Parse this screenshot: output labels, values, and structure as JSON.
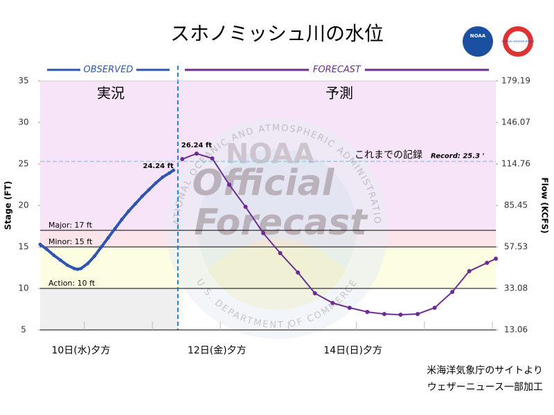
{
  "chart_data": {
    "type": "line",
    "title": "スホノミッシュ川の水位",
    "phase_labels": [
      "OBSERVED",
      "FORECAST"
    ],
    "region_labels": [
      "実況",
      "予測"
    ],
    "record": {
      "value": 25.3,
      "label": "Record: 25.3 '",
      "caption": "これまでの記録"
    },
    "thresholds": [
      {
        "name": "Major: 17 ft",
        "value": 17,
        "color": "#f8e4f8"
      },
      {
        "name": "Minor: 15 ft",
        "value": 15,
        "color": "#fbe4ea"
      },
      {
        "name": "Action: 10 ft",
        "value": 10,
        "color": "#fdfde2"
      }
    ],
    "y_label": "Stage (FT)",
    "y2_label": "Flow (KCFS)",
    "xlim": [
      10.1,
      16.8
    ],
    "xticks": [
      {
        "value": 10.75,
        "label": "10日(水)夕方"
      },
      {
        "value": 11.75,
        "label": null
      },
      {
        "value": 12.75,
        "label": "12日(金)夕方"
      },
      {
        "value": 13.75,
        "label": null
      },
      {
        "value": 14.75,
        "label": "14日(日)夕方"
      },
      {
        "value": 15.75,
        "label": null
      },
      {
        "value": 16.75,
        "label": null
      }
    ],
    "ylim": [
      5,
      35
    ],
    "yticks": [
      5,
      10,
      15,
      20,
      25,
      30,
      35
    ],
    "y2lim": [
      13.06,
      179.19
    ],
    "y2ticks": [
      13.06,
      33.08,
      57.53,
      85.45,
      114.76,
      146.07,
      179.19
    ],
    "series": [
      {
        "name": "OBSERVED",
        "color": "#2c55b0",
        "x": [
          10.1,
          10.2,
          10.3,
          10.4,
          10.5,
          10.6,
          10.65,
          10.7,
          10.8,
          10.9,
          11.0,
          11.1,
          11.2,
          11.3,
          11.4,
          11.5,
          11.6,
          11.7,
          11.8,
          11.9,
          12.0,
          12.06
        ],
        "values": [
          15.3,
          14.7,
          14.0,
          13.4,
          12.8,
          12.4,
          12.3,
          12.4,
          13.0,
          13.9,
          15.0,
          16.1,
          17.2,
          18.3,
          19.3,
          20.2,
          21.1,
          21.9,
          22.7,
          23.4,
          23.9,
          24.24
        ],
        "value_labels": [
          null,
          null,
          null,
          null,
          null,
          null,
          null,
          null,
          null,
          null,
          null,
          null,
          null,
          null,
          null,
          null,
          null,
          null,
          null,
          null,
          null,
          "24.24 ft"
        ]
      },
      {
        "name": "FORECAST",
        "color": "#6b2c93",
        "x": [
          12.19,
          12.4,
          12.63,
          12.88,
          13.12,
          13.38,
          13.63,
          13.89,
          14.14,
          14.4,
          14.65,
          14.91,
          15.16,
          15.4,
          15.65,
          15.9,
          16.16,
          16.41,
          16.67,
          16.8
        ],
        "values": [
          25.58,
          26.24,
          25.67,
          22.5,
          19.83,
          16.67,
          14.25,
          11.92,
          9.42,
          8.25,
          7.67,
          7.17,
          6.92,
          6.83,
          6.92,
          7.67,
          9.58,
          12.08,
          13.08,
          13.58
        ],
        "value_labels": [
          null,
          "26.24 ft",
          null,
          null,
          null,
          null,
          null,
          null,
          null,
          null,
          null,
          null,
          null,
          null,
          null,
          null,
          null,
          null,
          null,
          null
        ]
      }
    ],
    "watermark": {
      "main": [
        "Official",
        "Forecast"
      ],
      "seal": "NOAA",
      "arc_top": "NATIONAL OCEANIC AND ATMOSPHERIC ADMINISTRATION",
      "arc_bottom": "U.S. DEPARTMENT OF COMMERCE"
    },
    "logos": [
      "NOAA",
      "NATIONAL WEATHER SERVICE"
    ],
    "credits": [
      "米海洋気象庁のサイトより",
      "ウェザーニュース一部加工"
    ]
  }
}
